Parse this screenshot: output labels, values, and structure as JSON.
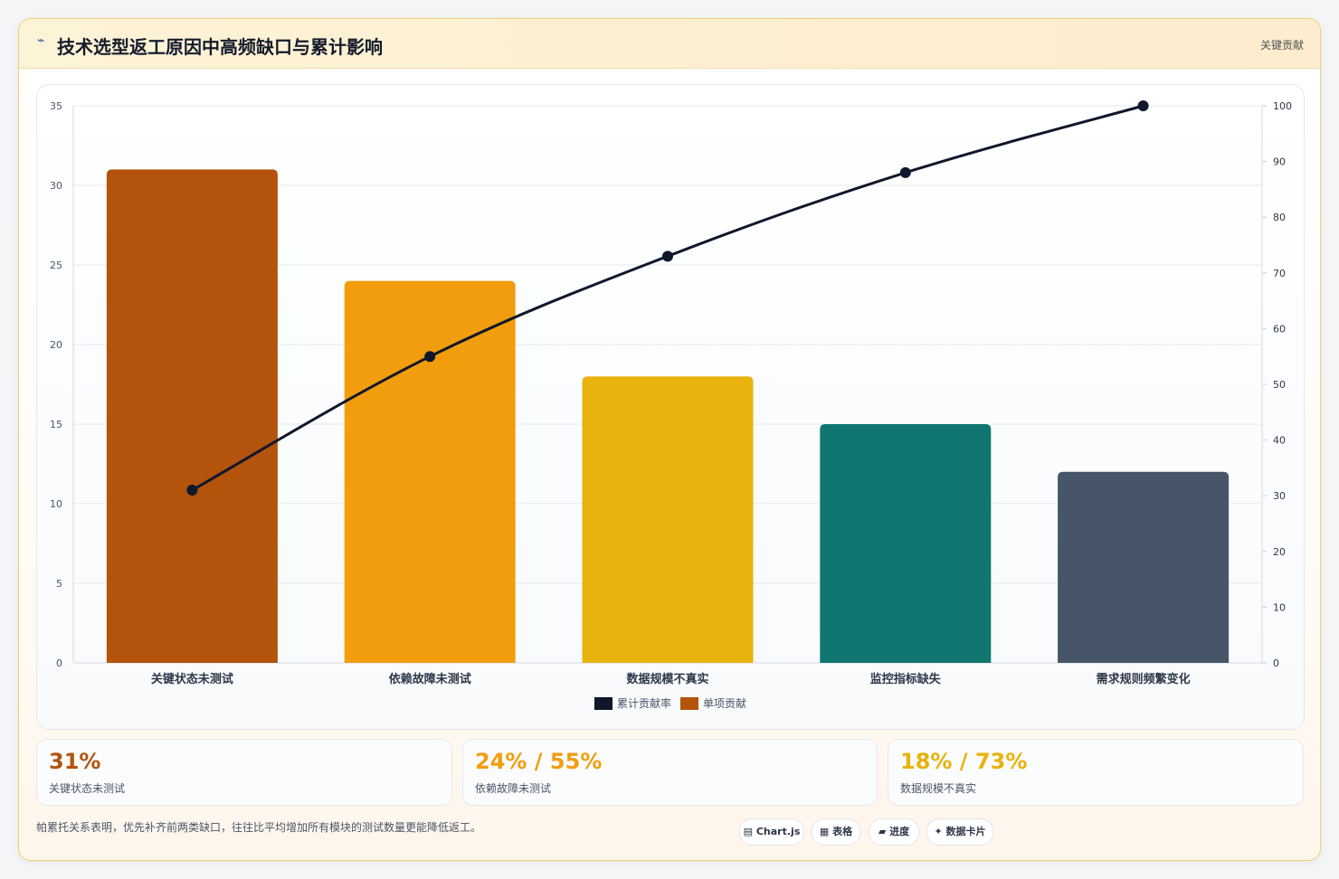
{
  "header": {
    "icon": "chart-icon",
    "title": "技术选型返工原因中高频缺口与累计影响",
    "tag": "关键贡献"
  },
  "chart_data": {
    "type": "bar",
    "categories": [
      "关键状态未测试",
      "依赖故障未测试",
      "数据规模不真实",
      "监控指标缺失",
      "需求规则频繁变化"
    ],
    "series": [
      {
        "name": "单项贡献",
        "type": "bar",
        "axis": "left",
        "values": [
          31,
          24,
          18,
          15,
          12
        ],
        "colors": [
          "#b4530c",
          "#f29d0e",
          "#e8b30c",
          "#10766f",
          "#475569"
        ]
      },
      {
        "name": "累计贡献率",
        "type": "line",
        "axis": "right",
        "values": [
          31,
          55,
          73,
          88,
          100
        ],
        "color": "#0f172a"
      }
    ],
    "ylim": [
      0,
      35
    ],
    "y_ticks": [
      0,
      5,
      10,
      15,
      20,
      25,
      30,
      35
    ],
    "y2lim": [
      0,
      100
    ],
    "y2_ticks": [
      0,
      10,
      20,
      30,
      40,
      50,
      60,
      70,
      80,
      90,
      100
    ],
    "legend": {
      "position": "bottom",
      "entries": [
        {
          "label": "累计贡献率",
          "color": "#0f172a"
        },
        {
          "label": "单项贡献",
          "color": "#b4530c"
        }
      ]
    },
    "grid": true
  },
  "stats": [
    {
      "value": "31%",
      "label": "关键状态未测试",
      "color": "#b4530c"
    },
    {
      "value": "24% / 55%",
      "label": "依赖故障未测试",
      "color": "#f29d0e"
    },
    {
      "value": "18% / 73%",
      "label": "数据规模不真实",
      "color": "#e8b30c"
    }
  ],
  "footer": {
    "note": "帕累托关系表明，优先补齐前两类缺口，往往比平均增加所有模块的测试数量更能降低返工。",
    "pills": [
      {
        "icon": "chart-icon",
        "glyph": "▤",
        "label": "Chart.js"
      },
      {
        "icon": "table-icon",
        "glyph": "▦",
        "label": "表格"
      },
      {
        "icon": "progress-icon",
        "glyph": "▰",
        "label": "进度"
      },
      {
        "icon": "sparkle-icon",
        "glyph": "✦",
        "label": "数据卡片"
      }
    ]
  }
}
